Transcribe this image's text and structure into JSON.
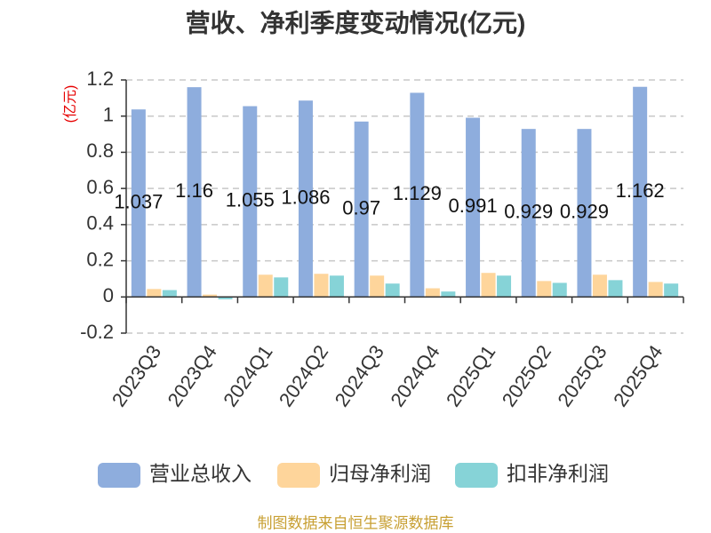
{
  "chart_data": {
    "type": "bar",
    "title": "营收、净利季度变动情况(亿元)",
    "xlabel": "",
    "ylabel": "(亿元)",
    "ylim": [
      -0.2,
      1.2
    ],
    "yticks": [
      1.2,
      1,
      0.8,
      0.6,
      0.4,
      0.2,
      0,
      -0.2
    ],
    "ytick_labels": [
      "1.2",
      "1",
      "0.8",
      "0.6",
      "0.4",
      "0.2",
      "0",
      "-0.2"
    ],
    "categories": [
      "2023Q3",
      "2023Q4",
      "2024Q1",
      "2024Q2",
      "2024Q3",
      "2024Q4",
      "2025Q1",
      "2025Q2",
      "2025Q3",
      "2025Q4"
    ],
    "series": [
      {
        "name": "营业总收入",
        "color": "#8eaddd",
        "data_labels": true,
        "values": [
          1.037,
          1.16,
          1.055,
          1.086,
          0.97,
          1.129,
          0.991,
          0.929,
          0.929,
          1.162
        ]
      },
      {
        "name": "归母净利润",
        "color": "#fed59b",
        "data_labels": false,
        "values": [
          0.044,
          0.013,
          0.123,
          0.128,
          0.118,
          0.048,
          0.133,
          0.088,
          0.123,
          0.083
        ]
      },
      {
        "name": "扣非净利润",
        "color": "#86d3d7",
        "data_labels": false,
        "values": [
          0.038,
          -0.013,
          0.108,
          0.118,
          0.074,
          0.03,
          0.118,
          0.078,
          0.093,
          0.074
        ]
      }
    ],
    "grid": true,
    "legend_position": "bottom"
  },
  "source": "制图数据来自恒生聚源数据库"
}
